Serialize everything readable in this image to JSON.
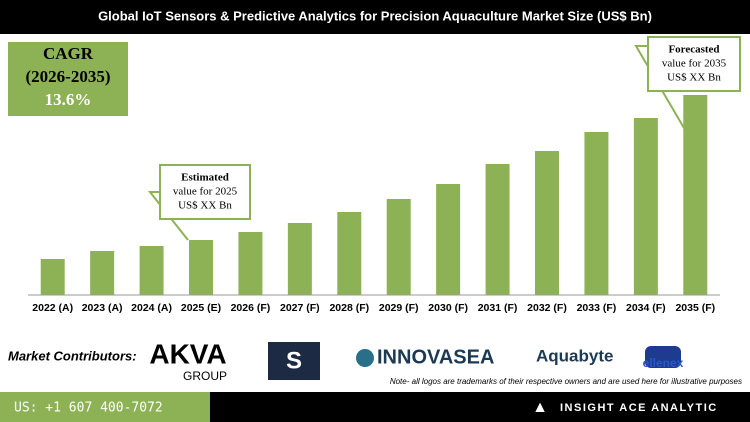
{
  "chart_data": {
    "type": "bar",
    "title": "Global IoT Sensors & Predictive Analytics for Precision Aquaculture Market Size (US$ Bn)",
    "categories": [
      "2022 (A)",
      "2023 (A)",
      "2024 (A)",
      "2025 (E)",
      "2026 (F)",
      "2027 (F)",
      "2028 (F)",
      "2029 (F)",
      "2030 (F)",
      "2031 (F)",
      "2032 (F)",
      "2033 (F)",
      "2034 (F)",
      "2035 (F)"
    ],
    "values": [
      36,
      44,
      49,
      55,
      63,
      72,
      83,
      96,
      111,
      131,
      144,
      163,
      177,
      200
    ],
    "color": "#8db255",
    "ylim": [
      0,
      210
    ],
    "annotations": [
      {
        "lines": [
          "Estimated",
          "value for 2025",
          "US$ XX Bn"
        ]
      },
      {
        "lines": [
          "Forecasted",
          "value for 2035",
          "US$ XX Bn"
        ]
      }
    ]
  },
  "cagr": {
    "label": "CAGR",
    "period": "(2026-2035)",
    "value": "13.6%"
  },
  "contributors": {
    "label": "Market Contributors:",
    "logos": [
      "AKVA",
      "GROUP",
      "S",
      "INNOVASEA",
      "Aquabyte",
      "ellenex"
    ],
    "note": "Note- all logos are trademarks of their respective owners and are used here for illustrative purposes"
  },
  "footer": {
    "phone": "US: +1 607 400-7072",
    "brand": "INSIGHT ACE ANALYTIC"
  }
}
